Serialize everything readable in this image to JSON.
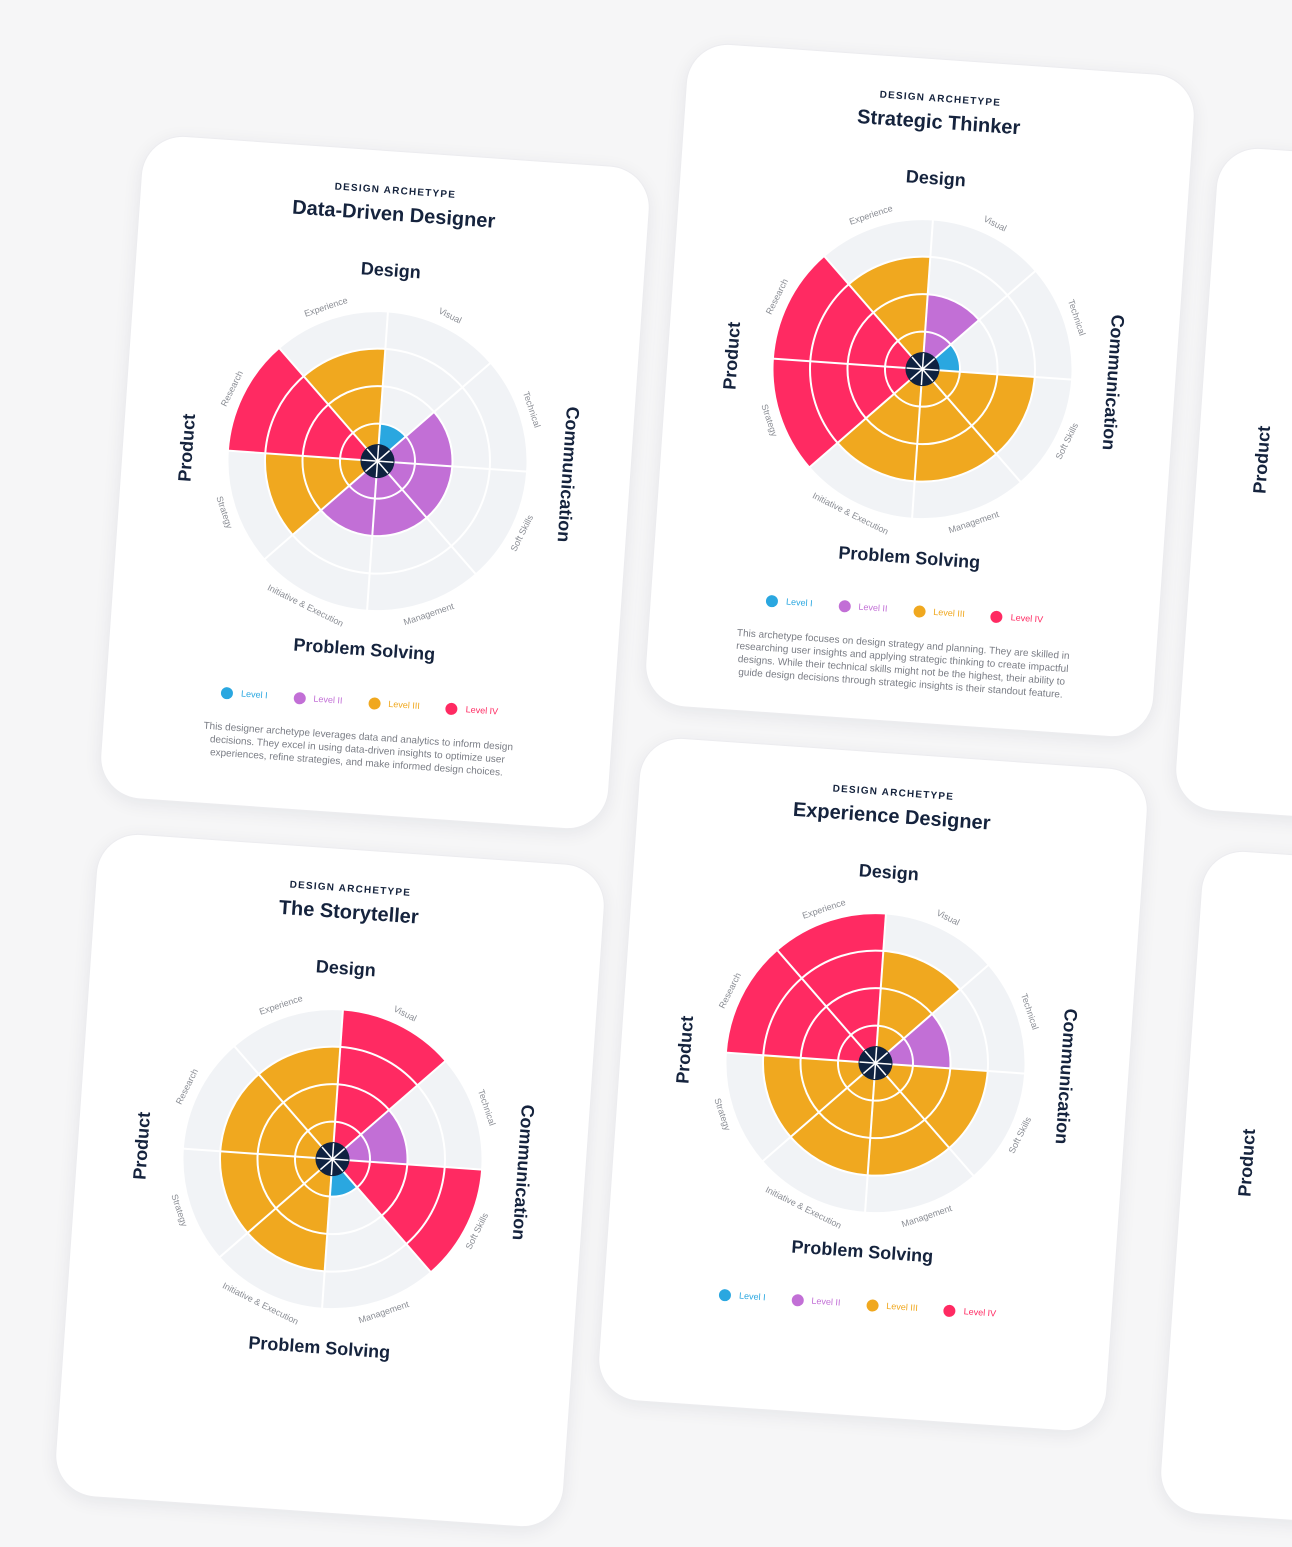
{
  "chart_data": [
    {
      "type": "polar",
      "eyebrow": "DESIGN ARCHETYPE",
      "title": "Data-Driven Designer",
      "groups": [
        "Design",
        "Communication",
        "Problem Solving",
        "Product"
      ],
      "categories": [
        "Visual",
        "Technical",
        "Soft Skills",
        "Management",
        "Initiative & Execution",
        "Strategy",
        "Research",
        "Experience"
      ],
      "values": [
        1,
        2,
        2,
        2,
        2,
        3,
        4,
        3
      ],
      "rlim": [
        0,
        4
      ],
      "rticks": [
        1,
        2,
        3,
        4
      ],
      "level_colors": [
        "#2aa7e0",
        "#c26fd6",
        "#f0a81f",
        "#ff2a62"
      ],
      "levels": [
        "Level I",
        "Level II",
        "Level III",
        "Level IV"
      ],
      "description": "This designer archetype leverages data and analytics to inform design decisions. They excel in using data-driven insights to optimize user experiences, refine strategies, and make informed design choices."
    },
    {
      "type": "polar",
      "eyebrow": "DESIGN ARCHETYPE",
      "title": "Strategic Thinker",
      "groups": [
        "Design",
        "Communication",
        "Problem Solving",
        "Product"
      ],
      "categories": [
        "Visual",
        "Technical",
        "Soft Skills",
        "Management",
        "Initiative & Execution",
        "Strategy",
        "Research",
        "Experience"
      ],
      "values": [
        2,
        1,
        3,
        3,
        3,
        4,
        4,
        3
      ],
      "rlim": [
        0,
        4
      ],
      "rticks": [
        1,
        2,
        3,
        4
      ],
      "level_colors": [
        "#2aa7e0",
        "#c26fd6",
        "#f0a81f",
        "#ff2a62"
      ],
      "levels": [
        "Level I",
        "Level II",
        "Level III",
        "Level IV"
      ],
      "description": "This archetype focuses on design strategy and planning. They are skilled in researching user insights and applying strategic thinking to create impactful designs. While their technical skills might not be the highest, their ability to guide design decisions through strategic insights is their standout feature."
    },
    {
      "type": "polar",
      "eyebrow": "DESIGN ARCHETYPE",
      "title": "The Storyteller",
      "groups": [
        "Design",
        "Communication",
        "Problem Solving",
        "Product"
      ],
      "categories": [
        "Visual",
        "Technical",
        "Soft Skills",
        "Management",
        "Initiative & Execution",
        "Strategy",
        "Research",
        "Experience"
      ],
      "values": [
        4,
        2,
        4,
        1,
        3,
        3,
        3,
        3
      ],
      "rlim": [
        0,
        4
      ],
      "rticks": [
        1,
        2,
        3,
        4
      ],
      "level_colors": [
        "#2aa7e0",
        "#c26fd6",
        "#f0a81f",
        "#ff2a62"
      ]
    },
    {
      "type": "polar",
      "eyebrow": "DESIGN ARCHETYPE",
      "title": "Experience Designer",
      "groups": [
        "Design",
        "Communication",
        "Problem Solving",
        "Product"
      ],
      "categories": [
        "Visual",
        "Technical",
        "Soft Skills",
        "Management",
        "Initiative & Execution",
        "Strategy",
        "Research",
        "Experience"
      ],
      "values": [
        3,
        2,
        3,
        3,
        3,
        3,
        4,
        4
      ],
      "rlim": [
        0,
        4
      ],
      "rticks": [
        1,
        2,
        3,
        4
      ],
      "level_colors": [
        "#2aa7e0",
        "#c26fd6",
        "#f0a81f",
        "#ff2a62"
      ],
      "levels": [
        "Level I",
        "Level II",
        "Level III",
        "Level IV"
      ]
    }
  ],
  "partial_cards": [
    {
      "label": "Product"
    },
    {
      "label": "Product"
    }
  ]
}
